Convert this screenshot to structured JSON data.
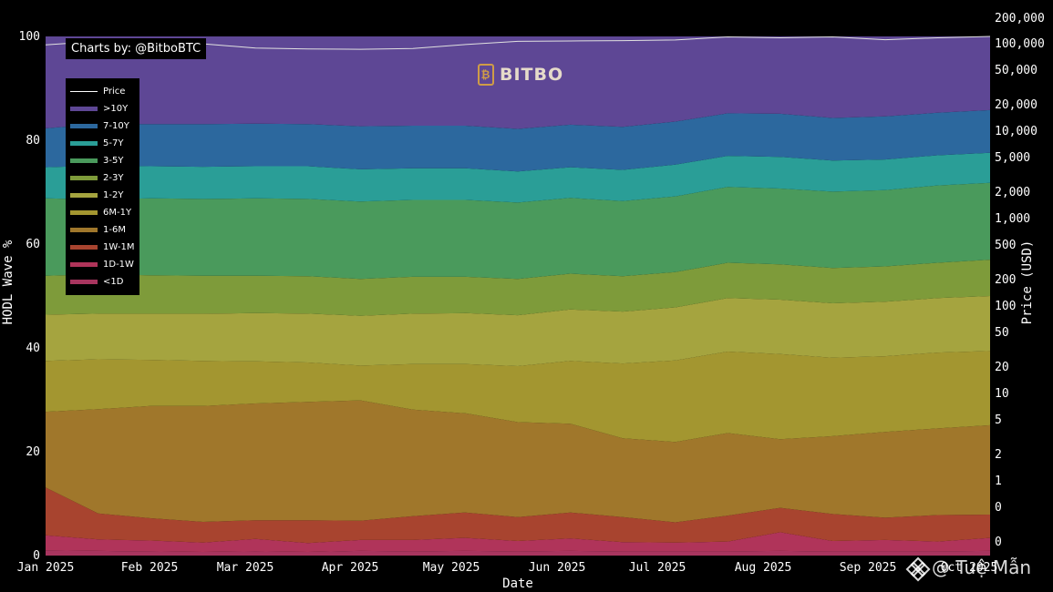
{
  "credit": "Charts by: @BitboBTC",
  "brand": "BITBO",
  "watermark": "@ Tuệ Mẫn",
  "chart_data": {
    "type": "area",
    "xlabel": "Date",
    "ylabel": "HODL Wave %",
    "y2label": "Price (USD)",
    "ylim": [
      0,
      100
    ],
    "y2_scale": "log",
    "yticks": [
      0,
      20,
      40,
      60,
      80,
      100
    ],
    "y2ticks": [
      "200,000",
      "100,000",
      "50,000",
      "20,000",
      "10,000",
      "5,000",
      "2,000",
      "1,000",
      "500",
      "200",
      "100",
      "50",
      "20",
      "10",
      "5",
      "2",
      "1",
      "0",
      "0"
    ],
    "xticks": [
      "Jan 2025",
      "Feb 2025",
      "Mar 2025",
      "Apr 2025",
      "May 2025",
      "Jun 2025",
      "Jul 2025",
      "Aug 2025",
      "Sep 2025",
      "Oct 2025"
    ],
    "x": [
      "2025-01-01",
      "2025-01-15",
      "2025-02-01",
      "2025-02-15",
      "2025-03-01",
      "2025-03-15",
      "2025-04-01",
      "2025-04-15",
      "2025-05-01",
      "2025-05-15",
      "2025-06-01",
      "2025-06-15",
      "2025-07-01",
      "2025-07-15",
      "2025-08-01",
      "2025-08-15",
      "2025-09-01",
      "2025-09-15",
      "2025-10-01"
    ],
    "legend_position": "top-left",
    "grid": false,
    "series": [
      {
        "name": "<1D",
        "color": "#a8355f",
        "values": [
          1.0,
          0.9,
          0.8,
          0.7,
          0.8,
          0.7,
          0.9,
          0.8,
          0.9,
          0.8,
          0.9,
          0.8,
          0.8,
          0.8,
          0.9,
          0.8,
          0.8,
          0.8,
          0.9
        ]
      },
      {
        "name": "1D-1W",
        "color": "#b0345a",
        "values": [
          2.9,
          2.2,
          2.1,
          1.8,
          2.4,
          1.7,
          2.1,
          2.2,
          2.5,
          2.0,
          2.4,
          1.8,
          1.7,
          1.9,
          3.6,
          2.0,
          2.2,
          1.9,
          2.5
        ]
      },
      {
        "name": "1W-1M",
        "color": "#a8442f",
        "values": [
          9.2,
          5.0,
          4.3,
          4.0,
          3.6,
          4.4,
          3.7,
          4.6,
          4.9,
          4.6,
          5.0,
          4.8,
          3.9,
          5.0,
          4.7,
          5.2,
          4.3,
          5.1,
          4.5
        ]
      },
      {
        "name": "1-6M",
        "color": "#a0772b",
        "values": [
          14.6,
          20.1,
          21.6,
          22.3,
          22.5,
          22.8,
          23.2,
          20.5,
          19.1,
          18.3,
          17.1,
          15.2,
          15.5,
          15.9,
          13.2,
          15.0,
          16.5,
          16.7,
          17.2
        ]
      },
      {
        "name": "6M-1Y",
        "color": "#a39630",
        "values": [
          9.8,
          9.6,
          8.9,
          8.7,
          8.1,
          7.6,
          6.7,
          8.8,
          9.5,
          10.8,
          12.1,
          14.4,
          15.7,
          15.7,
          16.4,
          15.1,
          14.6,
          14.6,
          14.3
        ]
      },
      {
        "name": "1-2Y",
        "color": "#a5a43f",
        "values": [
          8.9,
          8.8,
          8.9,
          9.1,
          9.3,
          9.4,
          9.6,
          9.7,
          9.8,
          9.8,
          9.9,
          10.0,
          10.2,
          10.3,
          10.5,
          10.5,
          10.5,
          10.5,
          10.6
        ]
      },
      {
        "name": "2-3Y",
        "color": "#7e9b3a",
        "values": [
          7.5,
          7.6,
          7.4,
          7.3,
          7.2,
          7.2,
          7.1,
          7.1,
          7.0,
          7.0,
          6.9,
          6.8,
          6.8,
          6.8,
          6.8,
          6.8,
          6.8,
          6.8,
          7.0
        ]
      },
      {
        "name": "3-5Y",
        "color": "#4a9a5c",
        "values": [
          14.9,
          14.4,
          14.8,
          14.8,
          14.9,
          14.9,
          14.9,
          14.8,
          14.8,
          14.7,
          14.6,
          14.5,
          14.6,
          14.6,
          14.6,
          14.7,
          14.7,
          14.9,
          14.8
        ]
      },
      {
        "name": "5-7Y",
        "color": "#2a9e97",
        "values": [
          6.0,
          6.5,
          6.2,
          6.2,
          6.2,
          6.3,
          6.2,
          6.1,
          6.1,
          6.0,
          5.9,
          6.0,
          6.1,
          6.0,
          6.1,
          6.0,
          5.9,
          5.8,
          5.8
        ]
      },
      {
        "name": "7-10Y",
        "color": "#2c689e",
        "values": [
          7.5,
          8.0,
          8.1,
          8.2,
          8.2,
          8.1,
          8.3,
          8.2,
          8.2,
          8.2,
          8.2,
          8.3,
          8.3,
          8.2,
          8.3,
          8.2,
          8.3,
          8.2,
          8.2
        ]
      },
      {
        "name": ">10Y",
        "color": "#5e4795",
        "values": [
          16.7,
          16.9,
          16.9,
          16.9,
          16.9,
          16.9,
          16.9,
          16.9,
          16.9,
          16.9,
          16.9,
          16.9,
          16.9,
          16.9,
          16.9,
          16.9,
          16.9,
          16.9,
          16.9
        ]
      }
    ],
    "price": {
      "name": "Price",
      "color": "#e0e0e0",
      "values": [
        94000,
        104000,
        100000,
        97000,
        86000,
        84000,
        83000,
        85000,
        95000,
        104000,
        105000,
        106000,
        108000,
        118000,
        115000,
        118000,
        109000,
        115000,
        121000
      ]
    }
  }
}
